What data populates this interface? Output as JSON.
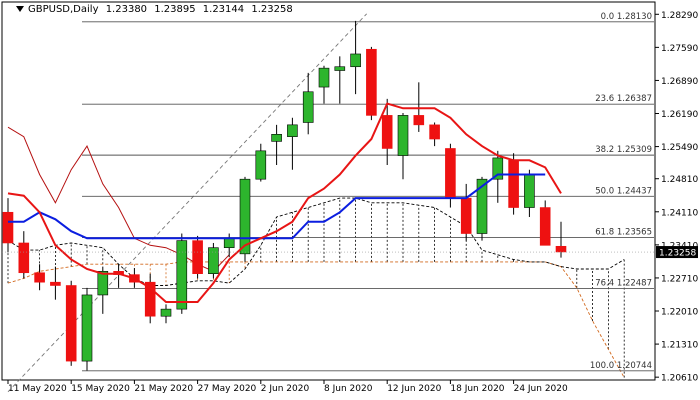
{
  "header": {
    "symbol": "GBPUSD,Daily",
    "open": "1.23380",
    "high": "1.23895",
    "low": "1.23144",
    "close": "1.23258"
  },
  "colors": {
    "bull": "#2db52d",
    "bear": "#ee1111",
    "tenkan": "#e81515",
    "kijun": "#0b1ee0",
    "chikou": "#b51010",
    "spanA": "#d2691e",
    "spanB": "#000000",
    "fib": "#555555",
    "trend": "#777777",
    "price_bg": "#000000",
    "price_fg": "#ffffff"
  },
  "chart_data": {
    "type": "candlestick",
    "ylim": [
      1.2055,
      1.2855
    ],
    "y_ticks": [
      "1.28290",
      "1.27590",
      "1.26890",
      "1.26190",
      "1.25490",
      "1.24810",
      "1.24110",
      "1.23410",
      "1.22710",
      "1.22010",
      "1.21310",
      "1.20610"
    ],
    "current_price": "1.23258",
    "x_ticks": [
      {
        "label": "11 May 2020",
        "index": 0
      },
      {
        "label": "15 May 2020",
        "index": 4
      },
      {
        "label": "21 May 2020",
        "index": 8
      },
      {
        "label": "27 May 2020",
        "index": 12
      },
      {
        "label": "2 Jun 2020",
        "index": 16
      },
      {
        "label": "8 Jun 2020",
        "index": 20
      },
      {
        "label": "12 Jun 2020",
        "index": 24
      },
      {
        "label": "18 Jun 2020",
        "index": 28
      },
      {
        "label": "24 Jun 2020",
        "index": 32
      }
    ],
    "candles": [
      {
        "o": 1.241,
        "h": 1.244,
        "l": 1.2325,
        "c": 1.2345
      },
      {
        "o": 1.2345,
        "h": 1.237,
        "l": 1.227,
        "c": 1.2282
      },
      {
        "o": 1.2282,
        "h": 1.23,
        "l": 1.2245,
        "c": 1.2262
      },
      {
        "o": 1.2262,
        "h": 1.2295,
        "l": 1.2225,
        "c": 1.2255
      },
      {
        "o": 1.2255,
        "h": 1.2265,
        "l": 1.2085,
        "c": 1.2095
      },
      {
        "o": 1.2095,
        "h": 1.225,
        "l": 1.2075,
        "c": 1.2235
      },
      {
        "o": 1.2235,
        "h": 1.2295,
        "l": 1.2195,
        "c": 1.2285
      },
      {
        "o": 1.2285,
        "h": 1.23,
        "l": 1.225,
        "c": 1.2278
      },
      {
        "o": 1.2278,
        "h": 1.2292,
        "l": 1.225,
        "c": 1.2262
      },
      {
        "o": 1.2262,
        "h": 1.228,
        "l": 1.2175,
        "c": 1.219
      },
      {
        "o": 1.219,
        "h": 1.2215,
        "l": 1.2175,
        "c": 1.2205
      },
      {
        "o": 1.2205,
        "h": 1.2365,
        "l": 1.2195,
        "c": 1.235
      },
      {
        "o": 1.235,
        "h": 1.236,
        "l": 1.227,
        "c": 1.228
      },
      {
        "o": 1.228,
        "h": 1.2345,
        "l": 1.227,
        "c": 1.2335
      },
      {
        "o": 1.2335,
        "h": 1.2365,
        "l": 1.2315,
        "c": 1.2355
      },
      {
        "o": 1.2322,
        "h": 1.2485,
        "l": 1.2305,
        "c": 1.248
      },
      {
        "o": 1.248,
        "h": 1.2555,
        "l": 1.2475,
        "c": 1.254
      },
      {
        "o": 1.256,
        "h": 1.2595,
        "l": 1.251,
        "c": 1.2575
      },
      {
        "o": 1.257,
        "h": 1.261,
        "l": 1.25,
        "c": 1.2595
      },
      {
        "o": 1.26,
        "h": 1.2705,
        "l": 1.2575,
        "c": 1.2665
      },
      {
        "o": 1.2675,
        "h": 1.272,
        "l": 1.264,
        "c": 1.2715
      },
      {
        "o": 1.271,
        "h": 1.274,
        "l": 1.264,
        "c": 1.2718
      },
      {
        "o": 1.2718,
        "h": 1.2815,
        "l": 1.266,
        "c": 1.2745
      },
      {
        "o": 1.2755,
        "h": 1.276,
        "l": 1.2605,
        "c": 1.2615
      },
      {
        "o": 1.2615,
        "h": 1.265,
        "l": 1.251,
        "c": 1.2545
      },
      {
        "o": 1.253,
        "h": 1.262,
        "l": 1.248,
        "c": 1.2615
      },
      {
        "o": 1.2615,
        "h": 1.2685,
        "l": 1.258,
        "c": 1.2595
      },
      {
        "o": 1.2595,
        "h": 1.26,
        "l": 1.255,
        "c": 1.2565
      },
      {
        "o": 1.2545,
        "h": 1.2555,
        "l": 1.242,
        "c": 1.244
      },
      {
        "o": 1.244,
        "h": 1.247,
        "l": 1.235,
        "c": 1.2365
      },
      {
        "o": 1.2365,
        "h": 1.2485,
        "l": 1.235,
        "c": 1.248
      },
      {
        "o": 1.248,
        "h": 1.254,
        "l": 1.243,
        "c": 1.2525
      },
      {
        "o": 1.252,
        "h": 1.2535,
        "l": 1.2405,
        "c": 1.242
      },
      {
        "o": 1.242,
        "h": 1.25,
        "l": 1.24,
        "c": 1.249
      },
      {
        "o": 1.242,
        "h": 1.2435,
        "l": 1.2345,
        "c": 1.234
      },
      {
        "o": 1.2338,
        "h": 1.239,
        "l": 1.2314,
        "c": 1.2326
      }
    ],
    "fibonacci": [
      {
        "label": "0.0 1.28130",
        "value": 1.2813
      },
      {
        "label": "23.6 1.26387",
        "value": 1.26387
      },
      {
        "label": "38.2 1.25309",
        "value": 1.25309
      },
      {
        "label": "50.0 1.24437",
        "value": 1.24437
      },
      {
        "label": "61.8 1.23565",
        "value": 1.23565
      },
      {
        "label": "76.4 1.22487",
        "value": 1.22487
      },
      {
        "label": "100.0 1.20744",
        "value": 1.20744
      }
    ],
    "tenkan": [
      1.245,
      1.2445,
      1.241,
      1.234,
      1.231,
      1.229,
      1.228,
      1.228,
      1.227,
      1.225,
      1.222,
      1.222,
      1.222,
      1.226,
      1.231,
      1.234,
      1.2355,
      1.237,
      1.239,
      1.244,
      1.246,
      1.249,
      1.253,
      1.2565,
      1.264,
      1.263,
      1.263,
      1.263,
      1.261,
      1.2575,
      1.255,
      1.253,
      1.252,
      1.252,
      1.2505,
      1.245
    ],
    "kijun": [
      1.239,
      1.239,
      1.241,
      1.2395,
      1.237,
      1.2355,
      1.2355,
      1.2355,
      1.2355,
      1.2355,
      1.2355,
      1.2355,
      1.2355,
      1.2355,
      1.2355,
      1.2355,
      1.2355,
      1.2355,
      1.2355,
      1.239,
      1.239,
      1.241,
      1.244,
      1.244,
      1.244,
      1.244,
      1.244,
      1.244,
      1.244,
      1.244,
      1.2465,
      1.249,
      1.249,
      1.249,
      1.249
    ],
    "chikou": [
      1.259,
      1.257,
      1.249,
      1.243,
      1.25,
      1.255,
      1.247,
      1.242,
      1.2355,
      1.234,
      1.2335,
      1.232,
      1.23,
      1.2285,
      1.232
    ],
    "span_a": [
      1.226,
      1.227,
      1.2285,
      1.229,
      1.2295,
      1.23,
      1.23,
      1.23,
      1.23,
      1.23,
      1.23,
      1.2305,
      1.2305,
      1.2305,
      1.2305,
      1.2305,
      1.2305,
      1.2305,
      1.2305,
      1.2305,
      1.2305,
      1.2305,
      1.2305,
      1.2305,
      1.2305,
      1.2305,
      1.2305,
      1.2305,
      1.2305,
      1.2305,
      1.2305,
      1.2305,
      1.2305,
      1.2305,
      1.2305,
      1.2295,
      1.225,
      1.218,
      1.212,
      1.206
    ],
    "span_b": [
      1.235,
      1.233,
      1.233,
      1.234,
      1.2345,
      1.234,
      1.2335,
      1.23,
      1.227,
      1.2255,
      1.2255,
      1.226,
      1.2265,
      1.2265,
      1.226,
      1.229,
      1.234,
      1.24,
      1.241,
      1.242,
      1.243,
      1.244,
      1.244,
      1.243,
      1.243,
      1.243,
      1.2425,
      1.242,
      1.24,
      1.238,
      1.233,
      1.232,
      1.231,
      1.2305,
      1.2305,
      1.2295,
      1.229,
      1.229,
      1.229,
      1.231
    ]
  }
}
